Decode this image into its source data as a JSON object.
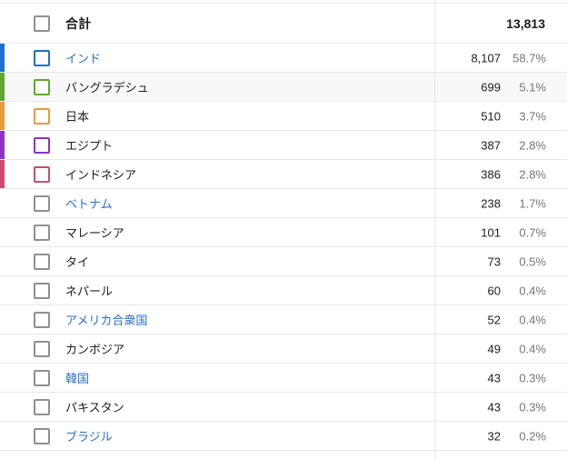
{
  "table": {
    "total_row": {
      "label": "合計",
      "value": "13,813"
    },
    "rows": [
      {
        "label": "インド",
        "value": "8,107",
        "percent": "58.7%",
        "color": "#1d6fd2",
        "link": true,
        "highlighted": false
      },
      {
        "label": "バングラデシュ",
        "value": "699",
        "percent": "5.1%",
        "color": "#61a830",
        "link": false,
        "highlighted": true
      },
      {
        "label": "日本",
        "value": "510",
        "percent": "3.7%",
        "color": "#e79b38",
        "link": false,
        "highlighted": false
      },
      {
        "label": "エジプト",
        "value": "387",
        "percent": "2.8%",
        "color": "#8d34c4",
        "link": false,
        "highlighted": false
      },
      {
        "label": "インドネシア",
        "value": "386",
        "percent": "2.8%",
        "color": "#cd4b6e",
        "link": false,
        "highlighted": false
      },
      {
        "label": "ベトナム",
        "value": "238",
        "percent": "1.7%",
        "color": null,
        "link": true,
        "highlighted": false
      },
      {
        "label": "マレーシア",
        "value": "101",
        "percent": "0.7%",
        "color": null,
        "link": false,
        "highlighted": false
      },
      {
        "label": "タイ",
        "value": "73",
        "percent": "0.5%",
        "color": null,
        "link": false,
        "highlighted": false
      },
      {
        "label": "ネパール",
        "value": "60",
        "percent": "0.4%",
        "color": null,
        "link": false,
        "highlighted": false
      },
      {
        "label": "アメリカ合衆国",
        "value": "52",
        "percent": "0.4%",
        "color": null,
        "link": true,
        "highlighted": false
      },
      {
        "label": "カンボジア",
        "value": "49",
        "percent": "0.4%",
        "color": null,
        "link": false,
        "highlighted": false
      },
      {
        "label": "韓国",
        "value": "43",
        "percent": "0.3%",
        "color": null,
        "link": true,
        "highlighted": false
      },
      {
        "label": "パキスタン",
        "value": "43",
        "percent": "0.3%",
        "color": null,
        "link": false,
        "highlighted": false
      },
      {
        "label": "ブラジル",
        "value": "32",
        "percent": "0.2%",
        "color": null,
        "link": true,
        "highlighted": false
      }
    ],
    "colors": {
      "link_text": "#2c70c8",
      "plain_text": "#202124",
      "muted_text": "#757575",
      "row_border": "#e7e7e7",
      "checkbox_gray": "#909090",
      "highlight_bg": "#f8f8f8"
    }
  }
}
